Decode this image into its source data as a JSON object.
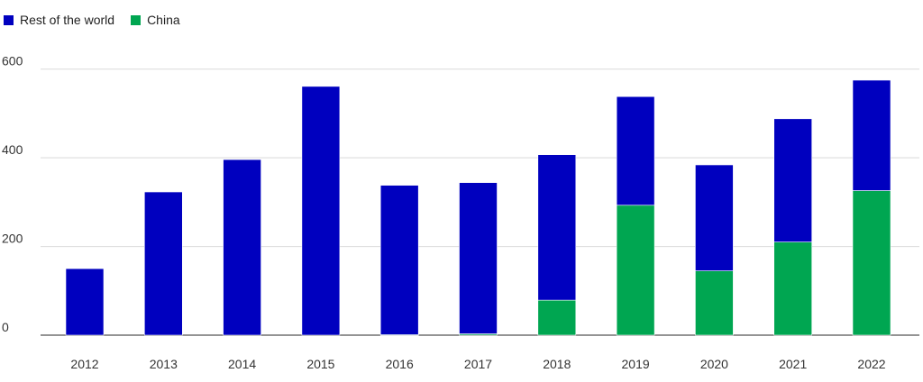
{
  "chart_data": {
    "type": "bar",
    "stacked": true,
    "categories": [
      "2012",
      "2013",
      "2014",
      "2015",
      "2016",
      "2017",
      "2018",
      "2019",
      "2020",
      "2021",
      "2022"
    ],
    "series": [
      {
        "name": "China",
        "color": "#00a651",
        "values": [
          0,
          0,
          0,
          0,
          1,
          3,
          79,
          293,
          145,
          210,
          326
        ]
      },
      {
        "name": "Rest of the world",
        "color": "#0000bf",
        "values": [
          150,
          323,
          396,
          561,
          337,
          341,
          328,
          245,
          239,
          278,
          249
        ]
      }
    ],
    "legend": [
      "Rest of the world",
      "China"
    ],
    "legend_position": "top-left",
    "ylim": [
      0,
      640
    ],
    "yticks": [
      0,
      200,
      400,
      600
    ],
    "grid": true,
    "title": "",
    "xlabel": "",
    "ylabel": ""
  }
}
